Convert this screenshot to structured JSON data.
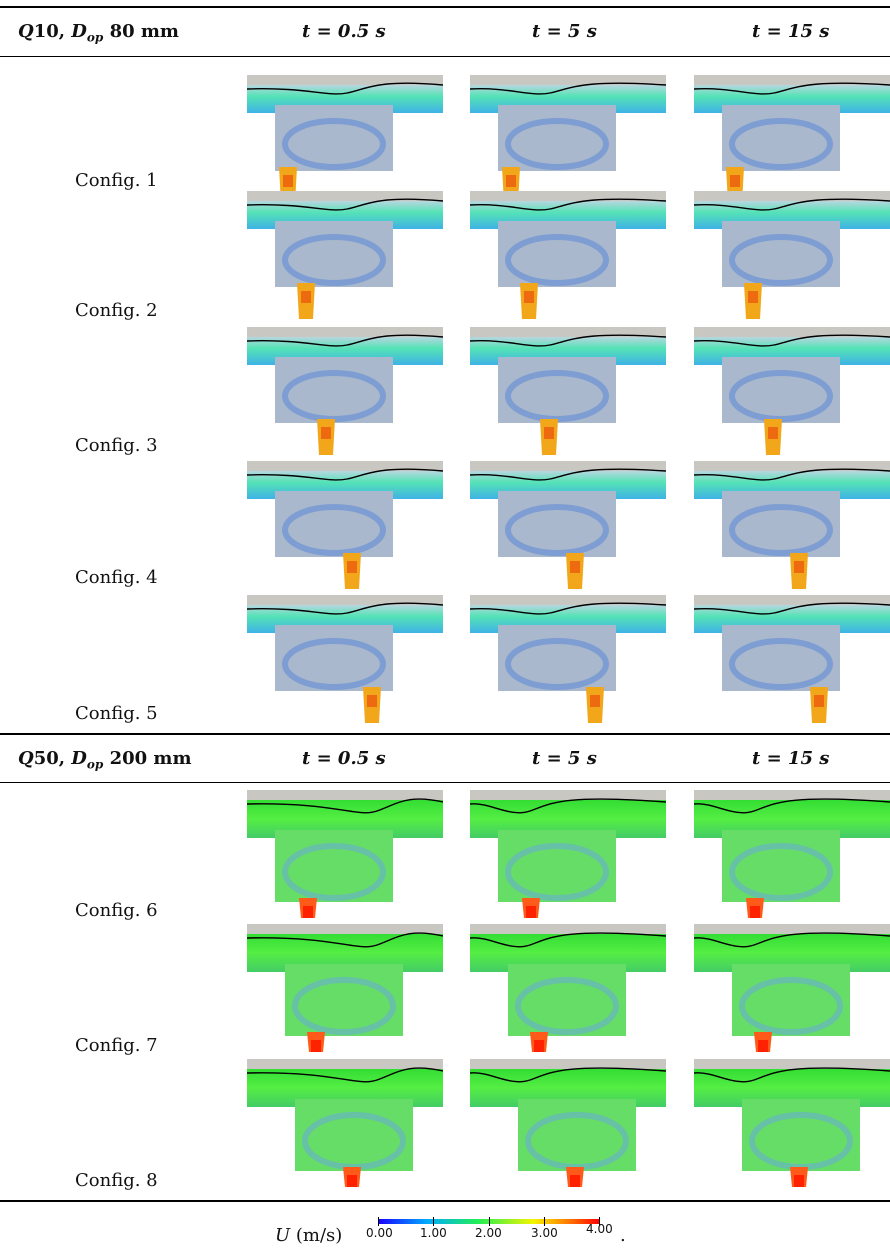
{
  "table": {
    "sections": [
      {
        "label_q": "Q",
        "label_q_num": "10, ",
        "label_d": "D",
        "label_d_sub": "op",
        "label_size": " 80 mm",
        "times": [
          "t = 0.5 s",
          "t = 5 s",
          "t = 15 s"
        ],
        "configs": [
          "Config. 1",
          "Config. 2",
          "Config. 3",
          "Config. 4",
          "Config. 5"
        ],
        "intensity": "low"
      },
      {
        "label_q": "Q",
        "label_q_num": "50, ",
        "label_d": "D",
        "label_d_sub": "op",
        "label_size": " 200 mm",
        "times": [
          "t = 0.5 s",
          "t = 5 s",
          "t = 15 s"
        ],
        "configs": [
          "Config. 6",
          "Config. 7",
          "Config. 8"
        ],
        "intensity": "high"
      }
    ]
  },
  "colorbar": {
    "label_var": "U",
    "label_unit": " (m/s)",
    "ticks": [
      "0.00",
      "1.00",
      "2.00",
      "3.00",
      "4.00"
    ],
    "trailing": ".",
    "colors": [
      "#1a00ff",
      "#00aaff",
      "#22ee55",
      "#f5f500",
      "#ff7700",
      "#ff0000"
    ]
  },
  "colors": {
    "background_gray": "#c9c7c1",
    "low_flow": "#4a7fd6",
    "surface_line": "#000000"
  }
}
